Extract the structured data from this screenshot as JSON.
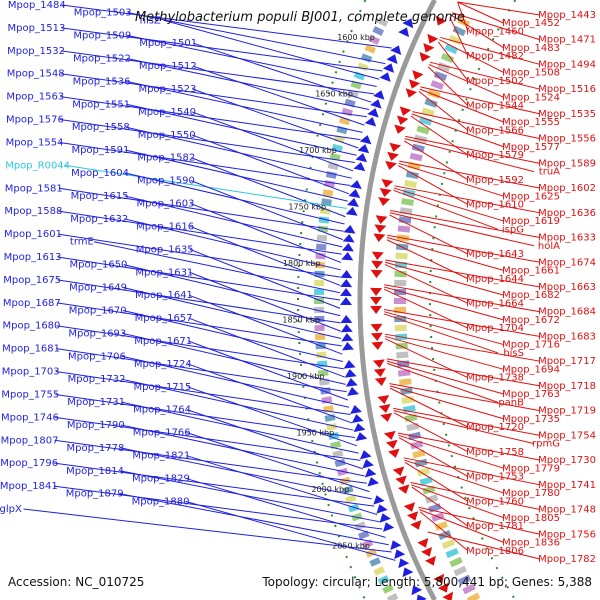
{
  "title": "Methylobacterium populi BJ001, complete genome",
  "footer": {
    "accession": "Accession: NC_010725",
    "summary": "Topology: circular; Length: 5,800,441 bp; Genes: 5,388"
  },
  "colors": {
    "forward": "#1f1fe0",
    "reverse": "#e01010",
    "highlight": "#2fc6e0",
    "backbone": "#9a9a9a",
    "tick_dot": "#2e8a2e"
  },
  "kbp_ticks": [
    "1600 kbp",
    "1650 kbp",
    "1700 kbp",
    "1750 kbp",
    "1800 kbp",
    "1850 kbp",
    "1900 kbp",
    "1950 kbp",
    "2000 kbp",
    "2050 kbp"
  ],
  "left_labels": [
    {
      "t": "Mpop_1484",
      "c": "f"
    },
    {
      "t": "Mpop_1503",
      "c": "f"
    },
    {
      "t": "hisZ",
      "c": "f"
    },
    {
      "t": "Mpop_1513",
      "c": "f"
    },
    {
      "t": "Mpop_1509",
      "c": "f"
    },
    {
      "t": "Mpop_1501",
      "c": "f"
    },
    {
      "t": "Mpop_1532",
      "c": "f"
    },
    {
      "t": "Mpop_1522",
      "c": "f"
    },
    {
      "t": "Mpop_1512",
      "c": "f"
    },
    {
      "t": "Mpop_1548",
      "c": "f"
    },
    {
      "t": "Mpop_1536",
      "c": "f"
    },
    {
      "t": "Mpop_1523",
      "c": "f"
    },
    {
      "t": "Mpop_1563",
      "c": "f"
    },
    {
      "t": "Mpop_1551",
      "c": "f"
    },
    {
      "t": "Mpop_1540",
      "c": "f"
    },
    {
      "t": "Mpop_1576",
      "c": "f"
    },
    {
      "t": "Mpop_1558",
      "c": "f"
    },
    {
      "t": "Mpop_1550",
      "c": "f"
    },
    {
      "t": "Mpop_1554",
      "c": "f"
    },
    {
      "t": "Mpop_1591",
      "c": "f"
    },
    {
      "t": "Mpop_1582",
      "c": "f"
    },
    {
      "t": "Mpop_R0044",
      "c": "h"
    },
    {
      "t": "Mpop_1604",
      "c": "f"
    },
    {
      "t": "Mpop_1590",
      "c": "f"
    },
    {
      "t": "Mpop_1581",
      "c": "f"
    },
    {
      "t": "Mpop_1615",
      "c": "f"
    },
    {
      "t": "Mpop_1603",
      "c": "f"
    },
    {
      "t": "Mpop_1588",
      "c": "f"
    },
    {
      "t": "Mpop_1632",
      "c": "f"
    },
    {
      "t": "Mpop_1616",
      "c": "f"
    },
    {
      "t": "Mpop_1601",
      "c": "f"
    },
    {
      "t": "trmE",
      "c": "f"
    },
    {
      "t": "Mpop_1635",
      "c": "f"
    },
    {
      "t": "Mpop_1613",
      "c": "f"
    },
    {
      "t": "Mpop_1650",
      "c": "f"
    },
    {
      "t": "Mpop_1631",
      "c": "f"
    },
    {
      "t": "Mpop_1675",
      "c": "f"
    },
    {
      "t": "Mpop_1649",
      "c": "f"
    },
    {
      "t": "Mpop_1641",
      "c": "f"
    },
    {
      "t": "Mpop_1687",
      "c": "f"
    },
    {
      "t": "Mpop_1670",
      "c": "f"
    },
    {
      "t": "Mpop_1657",
      "c": "f"
    },
    {
      "t": "Mpop_1680",
      "c": "f"
    },
    {
      "t": "Mpop_1693",
      "c": "f"
    },
    {
      "t": "Mpop_1671",
      "c": "f"
    },
    {
      "t": "Mpop_1681",
      "c": "f"
    },
    {
      "t": "Mpop_1706",
      "c": "f"
    },
    {
      "t": "Mpop_1724",
      "c": "f"
    },
    {
      "t": "Mpop_1703",
      "c": "f"
    },
    {
      "t": "Mpop_1732",
      "c": "f"
    },
    {
      "t": "Mpop_1715",
      "c": "f"
    },
    {
      "t": "Mpop_1755",
      "c": "f"
    },
    {
      "t": "Mpop_1731",
      "c": "f"
    },
    {
      "t": "Mpop_1764",
      "c": "f"
    },
    {
      "t": "Mpop_1746",
      "c": "f"
    },
    {
      "t": "Mpop_1790",
      "c": "f"
    },
    {
      "t": "Mpop_1766",
      "c": "f"
    },
    {
      "t": "Mpop_1807",
      "c": "f"
    },
    {
      "t": "Mpop_1778",
      "c": "f"
    },
    {
      "t": "Mpop_1821",
      "c": "f"
    },
    {
      "t": "Mpop_1796",
      "c": "f"
    },
    {
      "t": "Mpop_1814",
      "c": "f"
    },
    {
      "t": "Mpop_1829",
      "c": "f"
    },
    {
      "t": "Mpop_1841",
      "c": "f"
    },
    {
      "t": "Mpop_1879",
      "c": "f"
    },
    {
      "t": "Mpop_1880",
      "c": "f"
    },
    {
      "t": "glpX",
      "c": "f"
    }
  ],
  "right_labels": [
    "Mpop_1443",
    "Mpop_1452",
    "Mpop_1460",
    "Mpop_1471",
    "Mpop_1483",
    "Mpop_1482",
    "Mpop_1494",
    "Mpop_1508",
    "Mpop_1502",
    "Mpop_1516",
    "Mpop_1524",
    "Mpop_1544",
    "Mpop_1535",
    "Mpop_1555",
    "Mpop_1566",
    "Mpop_1556",
    "Mpop_1577",
    "Mpop_1579",
    "Mpop_1589",
    "truA",
    "Mpop_1592",
    "Mpop_1602",
    "Mpop_1625",
    "Mpop_1610",
    "Mpop_1636",
    "Mpop_1619",
    "ispG",
    "Mpop_1633",
    "holA",
    "Mpop_1643",
    "Mpop_1674",
    "Mpop_1661",
    "Mpop_1644",
    "Mpop_1663",
    "Mpop_1682",
    "Mpop_1664",
    "Mpop_1684",
    "Mpop_1672",
    "Mpop_1704",
    "Mpop_1683",
    "Mpop_1716",
    "hisS",
    "Mpop_1717",
    "Mpop_1694",
    "Mpop_1738",
    "Mpop_1718",
    "Mpop_1763",
    "panB",
    "Mpop_1719",
    "Mpop_1735",
    "Mpop_1720",
    "Mpop_1754",
    "rpmG",
    "Mpop_1758",
    "Mpop_1730",
    "Mpop_1779",
    "Mpop_1753",
    "Mpop_1741",
    "Mpop_1780",
    "Mpop_1760",
    "Mpop_1748",
    "Mpop_1805",
    "Mpop_1781",
    "Mpop_1756",
    "Mpop_1836",
    "Mpop_1806",
    "Mpop_1782"
  ]
}
